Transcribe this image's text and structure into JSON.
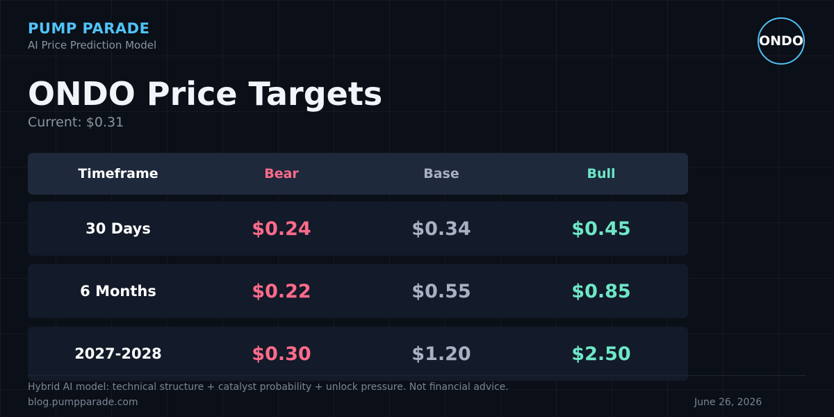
{
  "brand": "PUMP PARADE",
  "subtitle": "AI Price Prediction Model",
  "logo": "ONDO",
  "title": "ONDO Price Targets",
  "current": "Current: $0.31",
  "colors": {
    "brand_accent": "#4fc3f7",
    "bear": "#ff6b8b",
    "base": "#a7b1c2",
    "bull": "#6ee7c7",
    "background": "#0b0f17"
  },
  "table": {
    "headers": [
      "Timeframe",
      "Bear",
      "Base",
      "Bull"
    ],
    "rows": [
      {
        "timeframe": "30 Days",
        "bear": "$0.24",
        "base": "$0.34",
        "bull": "$0.45"
      },
      {
        "timeframe": "6 Months",
        "bear": "$0.22",
        "base": "$0.55",
        "bull": "$0.85"
      },
      {
        "timeframe": "2027-2028",
        "bear": "$0.30",
        "base": "$1.20",
        "bull": "$2.50"
      }
    ]
  },
  "footer": {
    "disclaimer": "Hybrid AI model: technical structure + catalyst probability + unlock pressure. Not financial advice.",
    "site": "blog.pumpparade.com",
    "date": "June 26, 2026"
  }
}
